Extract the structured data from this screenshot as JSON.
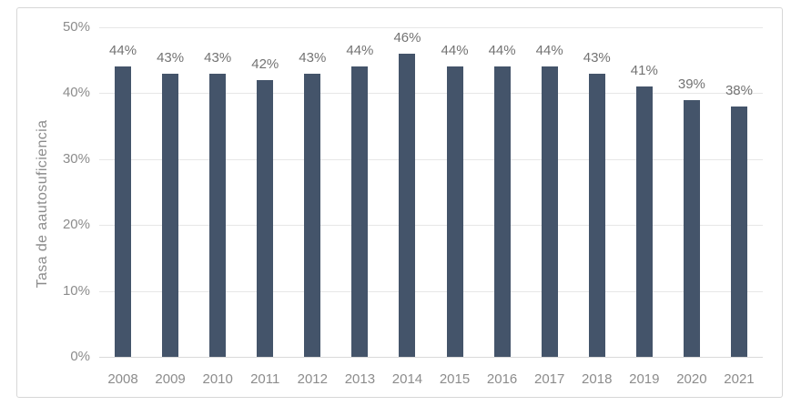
{
  "chart_data": {
    "type": "bar",
    "title": "",
    "xlabel": "",
    "ylabel": "Tasa de aautosuficiencia",
    "categories": [
      "2008",
      "2009",
      "2010",
      "2011",
      "2012",
      "2013",
      "2014",
      "2015",
      "2016",
      "2017",
      "2018",
      "2019",
      "2020",
      "2021"
    ],
    "values": [
      44,
      43,
      43,
      42,
      43,
      44,
      46,
      44,
      44,
      44,
      43,
      41,
      39,
      38
    ],
    "data_labels": [
      "44%",
      "43%",
      "43%",
      "42%",
      "43%",
      "44%",
      "46%",
      "44%",
      "44%",
      "44%",
      "43%",
      "41%",
      "39%",
      "38%"
    ],
    "ylim": [
      0,
      50
    ],
    "yticks": [
      0,
      10,
      20,
      30,
      40,
      50
    ],
    "ytick_labels": [
      "0%",
      "10%",
      "20%",
      "30%",
      "40%",
      "50%"
    ],
    "grid": true,
    "legend_position": "none",
    "colors": {
      "bar": "#44546A",
      "grid": "#e7e7e7",
      "axis_line": "#d9d9d9",
      "tick_text": "#8c8c8c",
      "label_text": "#737373",
      "frame_border": "#d7d7d7",
      "background": "#ffffff"
    }
  }
}
